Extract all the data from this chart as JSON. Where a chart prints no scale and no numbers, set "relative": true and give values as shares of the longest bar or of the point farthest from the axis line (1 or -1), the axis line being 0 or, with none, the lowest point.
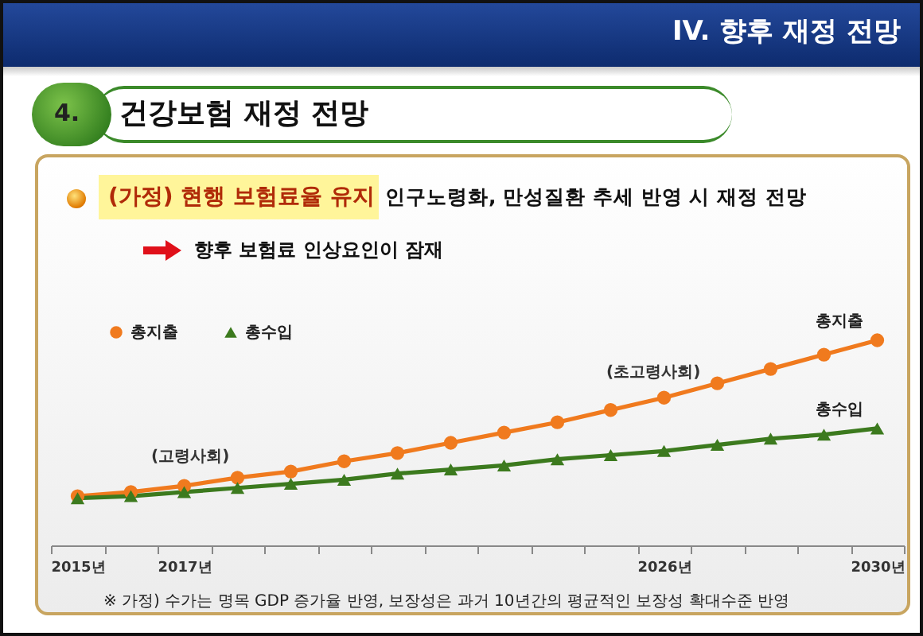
{
  "chart_data": {
    "type": "line",
    "title": "건강보험 재정 전망",
    "subtitle": "(가정) 현행 보험료율 유지",
    "annotations": [
      "IV. 향후 재정 전망",
      "4.",
      "인구노령화, 만성질환 추세 반영 시 재정 전망",
      "향후 보험료 인상요인이 잠재",
      "(고령사회)",
      "(초고령사회)",
      "※ 가정) 수가는 명목 GDP 증가율 반영, 보장성은 과거 10년간의 평균적인 보장성 확대수준 반영"
    ],
    "categories": [
      "2015년",
      null,
      "2017년",
      null,
      null,
      null,
      null,
      null,
      null,
      null,
      null,
      "2026년",
      null,
      null,
      null,
      "2030년"
    ],
    "series": [
      {
        "name": "총지출",
        "color": "#f07a1e",
        "marker": "circle",
        "values": [
          0.24,
          0.26,
          0.29,
          0.33,
          0.36,
          0.41,
          0.45,
          0.5,
          0.55,
          0.6,
          0.66,
          0.72,
          0.79,
          0.86,
          0.93,
          1
        ]
      },
      {
        "name": "총수입",
        "color": "#3c7a1e",
        "marker": "triangle",
        "values": [
          0.23,
          0.24,
          0.26,
          0.28,
          0.3,
          0.32,
          0.35,
          0.37,
          0.39,
          0.42,
          0.44,
          0.46,
          0.49,
          0.52,
          0.54,
          0.57
        ]
      }
    ],
    "relative": true,
    "legend": "top left",
    "line_style": "solid"
  }
}
